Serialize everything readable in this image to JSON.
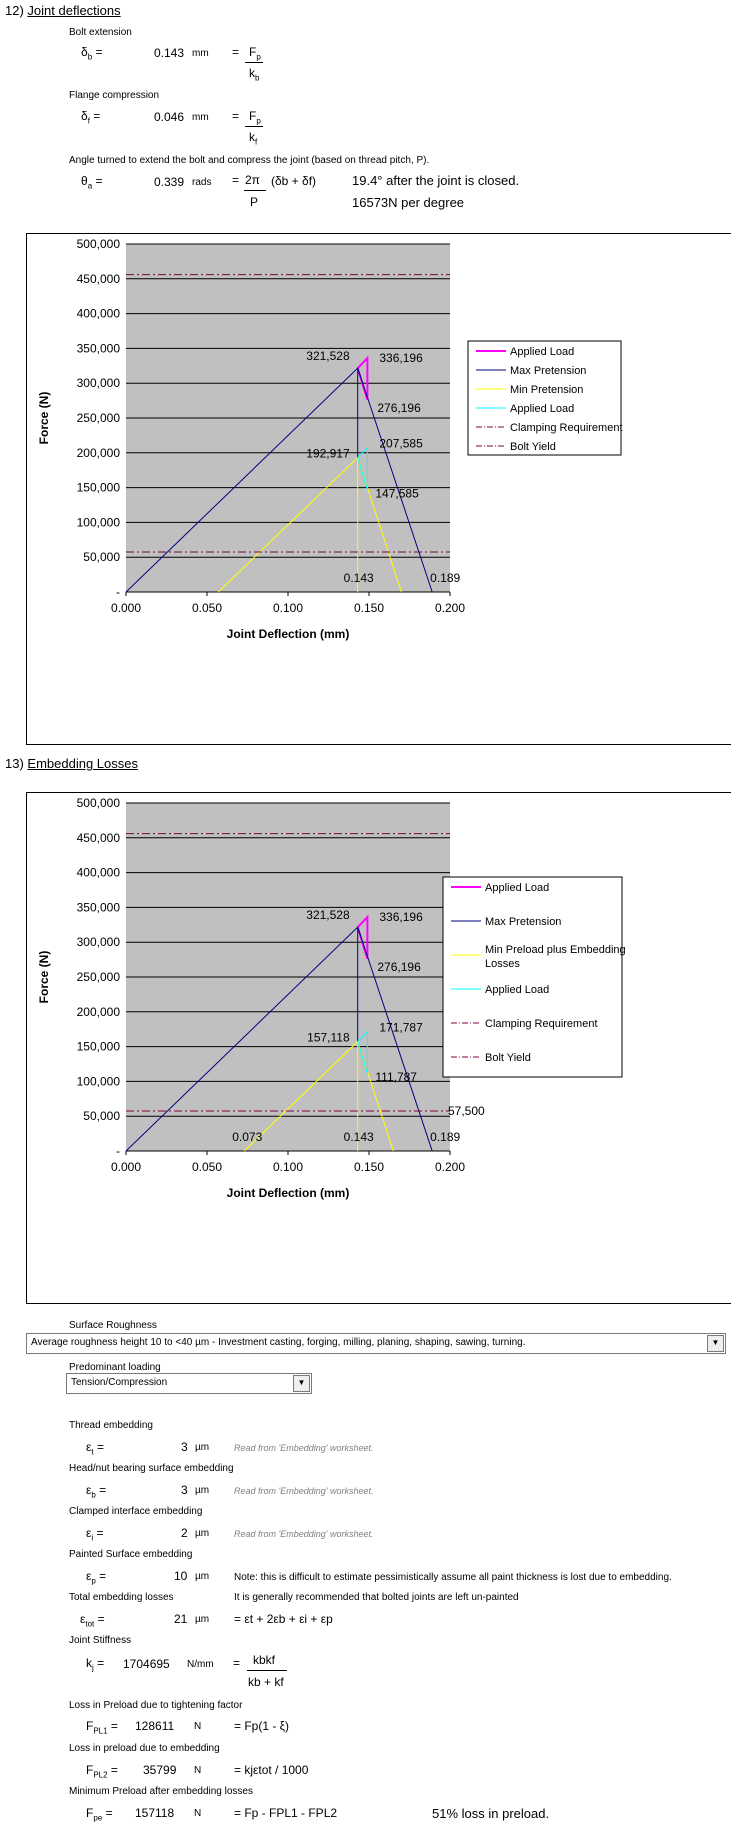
{
  "section12": {
    "number": "12)",
    "title": "Joint deflections",
    "bolt_ext_label": "Bolt extension",
    "db_sym": "δ",
    "db_sub": "b",
    "db_eq": "=",
    "db_val": "0.143",
    "db_unit": "mm",
    "db_feq": "=",
    "db_num": "F",
    "db_num_sub": "p",
    "db_den": "k",
    "db_den_sub": "b",
    "flange_label": "Flange compression",
    "df_sym": "δ",
    "df_sub": "f",
    "df_val": "0.046",
    "df_unit": "mm",
    "df_num": "F",
    "df_num_sub": "p",
    "df_den": "k",
    "df_den_sub": "f",
    "angle_label": "Angle turned to extend the bolt and compress the joint (based on thread pitch, P).",
    "theta_sym": "θ",
    "theta_sub": "a",
    "theta_val": "0.339",
    "theta_unit": "rads",
    "theta_num": "2π",
    "theta_den": "P",
    "theta_tail": "(δb + δf)",
    "angle_note1": "19.4° after the joint is closed.",
    "angle_note2": "16573N per degree"
  },
  "section13": {
    "number": "13)",
    "title": "Embedding Losses"
  },
  "colors": {
    "plot_bg": "#c0c0c0",
    "applied_load": "#ff00ff",
    "max_pretension": "#000080",
    "min_pretension": "#ffff00",
    "applied_load_min": "#00ffff",
    "limits": "#800040"
  },
  "chart_data": [
    {
      "type": "line",
      "xlabel": "Joint Deflection (mm)",
      "ylabel": "Force (N)",
      "xlim": [
        0,
        0.2
      ],
      "ylim": [
        0,
        500000
      ],
      "x_ticks": [
        "0.000",
        "0.050",
        "0.100",
        "0.150",
        "0.200"
      ],
      "y_ticks": [
        "-",
        "50,000",
        "100,000",
        "150,000",
        "200,000",
        "250,000",
        "300,000",
        "350,000",
        "400,000",
        "450,000",
        "500,000"
      ],
      "grid": true,
      "legend_position": "right",
      "series": [
        {
          "name": "Applied Load",
          "points": [
            [
              0.143,
              321528
            ],
            [
              0.149,
              336196
            ],
            [
              0.149,
              276196
            ],
            [
              0.143,
              321528
            ]
          ]
        },
        {
          "name": "Max Pretension",
          "points": [
            [
              0.0,
              0
            ],
            [
              0.143,
              321528
            ],
            [
              0.143,
              192917
            ],
            [
              0.143,
              321528
            ],
            [
              0.189,
              0
            ]
          ]
        },
        {
          "name": "Min Pretension",
          "points": [
            [
              0.057,
              0
            ],
            [
              0.143,
              192917
            ],
            [
              0.143,
              0
            ],
            [
              0.143,
              192917
            ],
            [
              0.17,
              0
            ]
          ]
        },
        {
          "name": "Applied Load",
          "points": [
            [
              0.143,
              192917
            ],
            [
              0.149,
              207585
            ],
            [
              0.149,
              147585
            ],
            [
              0.143,
              192917
            ]
          ]
        },
        {
          "name": "Clamping Requirement",
          "points": [
            [
              0,
              57500
            ],
            [
              0.2,
              57500
            ]
          ]
        },
        {
          "name": "Bolt Yield",
          "points": [
            [
              0,
              456000
            ],
            [
              0.2,
              456000
            ]
          ]
        }
      ],
      "annotations": [
        {
          "text": "321,528",
          "x": 0.143,
          "y": 321528
        },
        {
          "text": "336,196",
          "x": 0.149,
          "y": 336196
        },
        {
          "text": "276,196",
          "x": 0.149,
          "y": 276196
        },
        {
          "text": "192,917",
          "x": 0.143,
          "y": 192917
        },
        {
          "text": "207,585",
          "x": 0.149,
          "y": 207585
        },
        {
          "text": "147,585",
          "x": 0.149,
          "y": 147585
        },
        {
          "text": "0.143",
          "x": 0.143,
          "y": 0
        },
        {
          "text": "0.189",
          "x": 0.189,
          "y": 0
        }
      ]
    },
    {
      "type": "line",
      "xlabel": "Joint Deflection (mm)",
      "ylabel": "Force (N)",
      "xlim": [
        0,
        0.2
      ],
      "ylim": [
        0,
        500000
      ],
      "x_ticks": [
        "0.000",
        "0.050",
        "0.100",
        "0.150",
        "0.200"
      ],
      "y_ticks": [
        "-",
        "50,000",
        "100,000",
        "150,000",
        "200,000",
        "250,000",
        "300,000",
        "350,000",
        "400,000",
        "450,000",
        "500,000"
      ],
      "grid": true,
      "legend_position": "right",
      "series": [
        {
          "name": "Applied Load",
          "points": [
            [
              0.143,
              321528
            ],
            [
              0.149,
              336196
            ],
            [
              0.149,
              276196
            ],
            [
              0.143,
              321528
            ]
          ]
        },
        {
          "name": "Max Pretension",
          "points": [
            [
              0.0,
              0
            ],
            [
              0.143,
              321528
            ],
            [
              0.143,
              157118
            ],
            [
              0.143,
              321528
            ],
            [
              0.189,
              0
            ]
          ]
        },
        {
          "name": "Min Preload plus Embedding Losses",
          "points": [
            [
              0.073,
              0
            ],
            [
              0.143,
              157118
            ],
            [
              0.143,
              0
            ],
            [
              0.143,
              157118
            ],
            [
              0.165,
              0
            ]
          ]
        },
        {
          "name": "Applied Load",
          "points": [
            [
              0.143,
              157118
            ],
            [
              0.149,
              171787
            ],
            [
              0.149,
              111787
            ],
            [
              0.143,
              157118
            ]
          ]
        },
        {
          "name": "Clamping Requirement",
          "points": [
            [
              0,
              57500
            ],
            [
              0.2,
              57500
            ]
          ]
        },
        {
          "name": "Bolt Yield",
          "points": [
            [
              0,
              456000
            ],
            [
              0.2,
              456000
            ]
          ]
        }
      ],
      "annotations": [
        {
          "text": "321,528",
          "x": 0.143,
          "y": 321528
        },
        {
          "text": "336,196",
          "x": 0.149,
          "y": 336196
        },
        {
          "text": "276,196",
          "x": 0.149,
          "y": 276196
        },
        {
          "text": "157,118",
          "x": 0.143,
          "y": 157118
        },
        {
          "text": "171,787",
          "x": 0.149,
          "y": 171787
        },
        {
          "text": "111,787",
          "x": 0.149,
          "y": 111787
        },
        {
          "text": "0.073",
          "x": 0.073,
          "y": 0
        },
        {
          "text": "0.143",
          "x": 0.143,
          "y": 0
        },
        {
          "text": "0.189",
          "x": 0.189,
          "y": 0
        },
        {
          "text": "57,500",
          "x": 0.2,
          "y": 57500
        }
      ]
    }
  ],
  "surface": {
    "label": "Surface Roughness",
    "value": "Average  roughness height 10 to <40 µm - Investment casting, forging, milling, planing, shaping, sawing, turning.",
    "loading_label": "Predominant loading",
    "loading_value": "Tension/Compression"
  },
  "embedding": {
    "thread_label": "Thread embedding",
    "et_sym": "ε",
    "et_sub": "t",
    "et_val": "3",
    "et_unit": "µm",
    "et_note": "Read from 'Embedding' worksheet.",
    "head_label": "Head/nut bearing surface embedding",
    "eb_sym": "ε",
    "eb_sub": "b",
    "eb_val": "3",
    "eb_unit": "µm",
    "eb_note": "Read from 'Embedding' worksheet.",
    "clamped_label": "Clamped interface embedding",
    "ei_sym": "ε",
    "ei_sub": "i",
    "ei_val": "2",
    "ei_unit": "µm",
    "ei_note": "Read from 'Embedding' worksheet.",
    "painted_label": "Painted Surface embedding",
    "ep_sym": "ε",
    "ep_sub": "p",
    "ep_val": "10",
    "ep_unit": "µm",
    "ep_note": "Note: this is difficult to estimate pessimistically assume all paint thickness is lost due to embedding.",
    "total_label": "Total embedding losses",
    "total_note": "It is generally recommended that bolted joints are left un-painted",
    "etot_sym": "ε",
    "etot_sub": "tot",
    "etot_val": "21",
    "etot_unit": "µm",
    "etot_formula": "= εt + 2εb + εi + εp",
    "stiff_label": "Joint Stiffness",
    "kj_sym": "k",
    "kj_sub": "j",
    "kj_val": "1704695",
    "kj_unit": "N/mm",
    "kj_num": "kbkf",
    "kj_den": "kb + kf",
    "pl1_label": "Loss in Preload due to tightening factor",
    "pl1_sym": "F",
    "pl1_sub": "PL1",
    "pl1_val": "128611",
    "pl1_unit": "N",
    "pl1_formula": "= Fp(1 - ξ)",
    "pl2_label": "Loss in preload due to embedding",
    "pl2_sym": "F",
    "pl2_sub": "PL2",
    "pl2_val": "35799",
    "pl2_unit": "N",
    "pl2_formula": "= kjεtot / 1000",
    "fpe_label": "Minimum Preload after embedding losses",
    "fpe_sym": "F",
    "fpe_sub": "pe",
    "fpe_val": "157118",
    "fpe_unit": "N",
    "fpe_formula": "= Fp - FPL1 - FPL2",
    "fpe_note": "51% loss in preload."
  }
}
